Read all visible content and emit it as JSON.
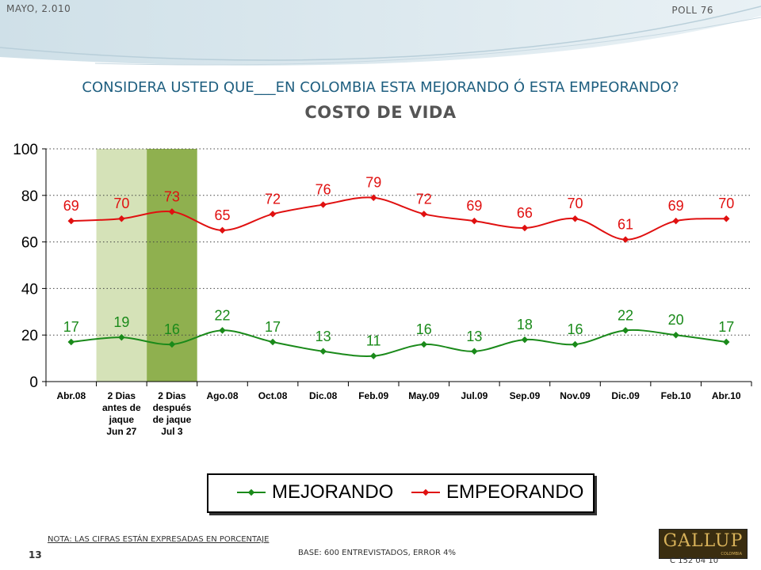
{
  "header": {
    "date": "MAYO, 2.010",
    "poll": "POLL 76"
  },
  "title": "CONSIDERA USTED QUE___EN COLOMBIA ESTA MEJORANDO Ó ESTA EMPEORANDO?",
  "subtitle": "COSTO DE VIDA",
  "chart_data": {
    "type": "line",
    "categories": [
      "Abr.08",
      "2 Dias\nantes de\njaque\nJun 27",
      "2 Dias\ndespués\nde jaque\nJul 3",
      "Ago.08",
      "Oct.08",
      "Dic.08",
      "Feb.09",
      "May.09",
      "Jul.09",
      "Sep.09",
      "Nov.09",
      "Dic.09",
      "Feb.10",
      "Abr.10"
    ],
    "series": [
      {
        "name": "MEJORANDO",
        "color": "#1a8a1a",
        "values": [
          17,
          19,
          16,
          22,
          17,
          13,
          11,
          16,
          13,
          18,
          16,
          22,
          20,
          17
        ]
      },
      {
        "name": "EMPEORANDO",
        "color": "#e01010",
        "values": [
          69,
          70,
          73,
          65,
          72,
          76,
          79,
          72,
          69,
          66,
          70,
          61,
          69,
          70
        ]
      }
    ],
    "yticks": [
      "0",
      "20",
      "40",
      "60",
      "80",
      "100"
    ],
    "ylim": [
      0,
      100
    ],
    "grid": "horizontal dotted",
    "highlight_bands": [
      {
        "category_index": 1,
        "color": "#d5e2b8"
      },
      {
        "category_index": 2,
        "color": "#8fb04f"
      }
    ],
    "legend_position": "bottom"
  },
  "note": "NOTA: LAS CIFRAS ESTÁN EXPRESADAS EN PORCENTAJE",
  "base": "BASE: 600 ENTREVISTADOS, ERROR 4%",
  "page_number": "13",
  "code": "C 152 04 10",
  "logo": {
    "name": "GALLUP",
    "sub": "COLOMBIA"
  }
}
